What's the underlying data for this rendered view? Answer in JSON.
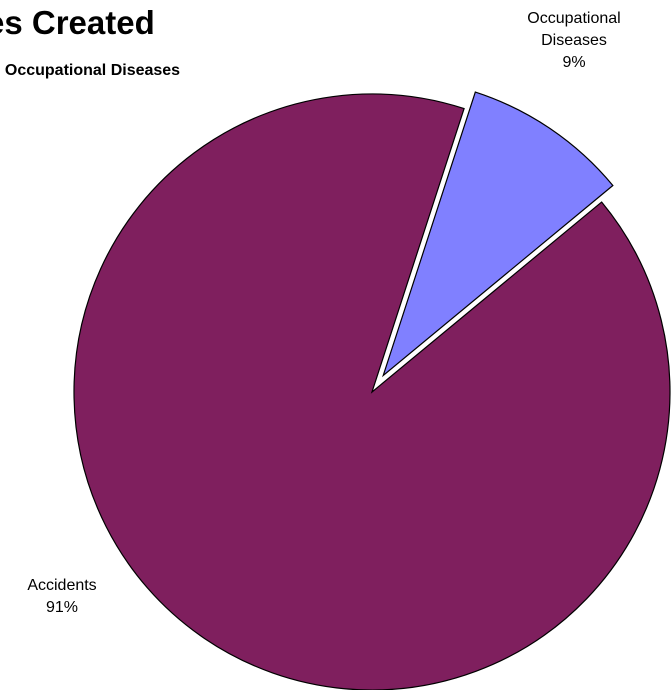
{
  "chart_data": {
    "type": "pie",
    "title": "es Created",
    "subtitle": ". Occupational Diseases",
    "slices": [
      {
        "name": "Occupational Diseases",
        "label_lines": [
          "Occupational",
          "Diseases",
          "9%"
        ],
        "value": 9,
        "color": "#8080ff",
        "exploded": true
      },
      {
        "name": "Accidents",
        "label_lines": [
          "Accidents",
          "91%"
        ],
        "value": 91,
        "color": "#7f1f5e",
        "exploded": false
      }
    ],
    "legend": "none",
    "label_position": "outside"
  }
}
